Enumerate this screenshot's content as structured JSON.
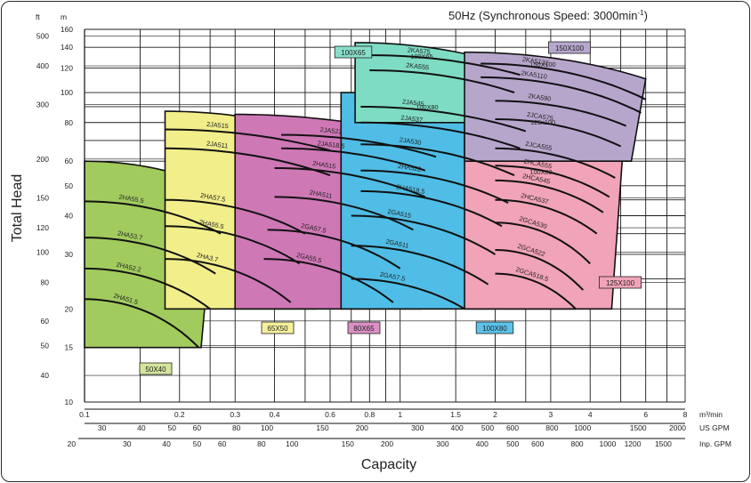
{
  "chart_data": {
    "type": "pump-selection-chart",
    "title": "50Hz (Synchronous Speed: 3000min",
    "title_sup": "-1",
    "title_end": ")",
    "ylabel": "Total Head",
    "xlabel": "Capacity",
    "y_scale": "log",
    "x_scale": "log",
    "ylim_m": [
      10,
      160
    ],
    "xlim_m3min": [
      0.1,
      8
    ],
    "y_units": {
      "left": "ft",
      "right": "m"
    },
    "y_ticks_m": [
      "160",
      "140",
      "120",
      "100",
      "80",
      "60",
      "50",
      "40",
      "30",
      "20",
      "15",
      "10"
    ],
    "y_ticks_ft": [
      "500",
      "400",
      "300",
      "200",
      "150",
      "120",
      "100",
      "80",
      "60",
      "50",
      "40"
    ],
    "x_units": [
      "m³/min",
      "US GPM",
      "Inp. GPM"
    ],
    "x_ticks_m3min": [
      "0.1",
      "0.2",
      "0.3",
      "0.4",
      "0.6",
      "0.8",
      "1",
      "1.5",
      "2",
      "3",
      "4",
      "6",
      "8"
    ],
    "x_ticks_usgpm": [
      "30",
      "40",
      "50",
      "60",
      "80",
      "100",
      "150",
      "200",
      "300",
      "400",
      "500",
      "600",
      "800",
      "1000",
      "1500",
      "2000"
    ],
    "x_ticks_impgpm": [
      "20",
      "30",
      "40",
      "50",
      "60",
      "80",
      "100",
      "150",
      "200",
      "300",
      "400",
      "500",
      "600",
      "800",
      "1000",
      "1200",
      "1500"
    ],
    "series": [
      {
        "name": "50X40",
        "color": "#a2cb5e",
        "label_color": "#d3e59b",
        "x": [
          0.1,
          0.26
        ],
        "y": [
          15,
          60
        ],
        "curves": [
          {
            "label": "2HA55.5",
            "points": [
              [
                0.1,
                44.5
              ],
              [
                0.27,
                35
              ]
            ]
          },
          {
            "label": "2HA53.7",
            "points": [
              [
                0.1,
                34
              ],
              [
                0.26,
                26
              ]
            ]
          },
          {
            "label": "2HA52.2",
            "points": [
              [
                0.1,
                27
              ],
              [
                0.25,
                20
              ]
            ]
          },
          {
            "label": "2HA51.5",
            "points": [
              [
                0.1,
                21.5
              ],
              [
                0.23,
                15
              ]
            ]
          }
        ]
      },
      {
        "name": "65X50",
        "color": "#f2ee8a",
        "label_color": "#f5f09a",
        "x": [
          0.18,
          0.6
        ],
        "y": [
          20,
          87
        ],
        "curves": [
          {
            "label": "2JA515",
            "points": [
              [
                0.18,
                76
              ],
              [
                0.6,
                65
              ]
            ]
          },
          {
            "label": "2JA511",
            "points": [
              [
                0.18,
                66
              ],
              [
                0.6,
                54
              ]
            ]
          },
          {
            "label": "2HA57.5",
            "points": [
              [
                0.18,
                45
              ],
              [
                0.5,
                35
              ]
            ]
          },
          {
            "label": "2HA55.5",
            "points": [
              [
                0.18,
                37
              ],
              [
                0.48,
                28
              ]
            ]
          },
          {
            "label": "2HA3.7",
            "points": [
              [
                0.18,
                29
              ],
              [
                0.45,
                21
              ]
            ]
          }
        ]
      },
      {
        "name": "80X65",
        "color": "#cf78b6",
        "label_color": "#d990c4",
        "x": [
          0.3,
          1.3
        ],
        "y": [
          20,
          85
        ],
        "curves": [
          {
            "label": "2JA522",
            "points": [
              [
                0.42,
                73
              ],
              [
                1.3,
                62
              ]
            ]
          },
          {
            "label": "2JA518.5",
            "points": [
              [
                0.42,
                66
              ],
              [
                1.2,
                56
              ]
            ]
          },
          {
            "label": "2HA515",
            "points": [
              [
                0.4,
                57
              ],
              [
                1.2,
                46
              ]
            ]
          },
          {
            "label": "2HA511",
            "points": [
              [
                0.4,
                46
              ],
              [
                1.1,
                36
              ]
            ]
          },
          {
            "label": "2GA57.5",
            "points": [
              [
                0.38,
                36
              ],
              [
                1.0,
                27
              ]
            ]
          },
          {
            "label": "2GA55.5",
            "points": [
              [
                0.37,
                29
              ],
              [
                0.95,
                21
              ]
            ]
          }
        ]
      },
      {
        "name": "100X80",
        "color": "#4fbde6",
        "label_color": "#5cc3ea",
        "x": [
          0.65,
          4.0
        ],
        "y": [
          20,
          100
        ],
        "curves": [
          {
            "label": "2JA545",
            "points": [
              [
                0.75,
                90
              ],
              [
                2.5,
                75
              ]
            ]
          },
          {
            "label": "2JA537",
            "points": [
              [
                0.75,
                80
              ],
              [
                2.4,
                66
              ]
            ]
          },
          {
            "label": "2JA530",
            "points": [
              [
                0.75,
                68
              ],
              [
                2.3,
                54
              ]
            ]
          },
          {
            "label": "2HA522",
            "points": [
              [
                0.75,
                56
              ],
              [
                2.2,
                44
              ]
            ]
          },
          {
            "label": "2HA518.5",
            "points": [
              [
                0.75,
                48
              ],
              [
                2.1,
                37
              ]
            ]
          },
          {
            "label": "2GA515",
            "points": [
              [
                0.7,
                40
              ],
              [
                2.0,
                30
              ]
            ]
          },
          {
            "label": "2GA511",
            "points": [
              [
                0.7,
                32
              ],
              [
                1.9,
                24
              ]
            ]
          },
          {
            "label": "2GA57.5",
            "points": [
              [
                0.7,
                25
              ],
              [
                1.6,
                20
              ]
            ]
          }
        ]
      },
      {
        "name": "125X100",
        "color": "#f1a3b7",
        "label_color": "#f1a3b7",
        "x": [
          1.6,
          5.2
        ],
        "y": [
          20,
          110
        ],
        "curves": [
          {
            "label": "2KA590",
            "points": [
              [
                2.0,
                94
              ],
              [
                5.2,
                78
              ]
            ]
          },
          {
            "label": "2JCA575",
            "points": [
              [
                2.0,
                82
              ],
              [
                5.0,
                67
              ]
            ]
          },
          {
            "label": "2JCA555",
            "points": [
              [
                2.0,
                66
              ],
              [
                4.8,
                53
              ]
            ]
          },
          {
            "label": "2HCA555",
            "points": [
              [
                2.0,
                58
              ],
              [
                4.6,
                46
              ]
            ]
          },
          {
            "label": "2HCA545",
            "points": [
              [
                2.0,
                52
              ],
              [
                4.4,
                41
              ]
            ]
          },
          {
            "label": "2HCA537",
            "points": [
              [
                2.0,
                45
              ],
              [
                4.2,
                35
              ]
            ]
          },
          {
            "label": "2GCA530",
            "points": [
              [
                2.0,
                38
              ],
              [
                4.0,
                28
              ]
            ]
          },
          {
            "label": "2GCA522",
            "points": [
              [
                2.0,
                31
              ],
              [
                3.8,
                23
              ]
            ]
          },
          {
            "label": "2GCA518.5",
            "points": [
              [
                2.0,
                26
              ],
              [
                3.6,
                20
              ]
            ]
          }
        ]
      },
      {
        "name": "100X65",
        "color": "#7fdcc4",
        "label_color": "#88dec8",
        "x": [
          0.72,
          2.4
        ],
        "y": [
          80,
          145
        ],
        "curves": [
          {
            "label": "2KA575",
            "points": [
              [
                0.8,
                132
              ],
              [
                2.4,
                114
              ]
            ]
          },
          {
            "label": "2KA555",
            "points": [
              [
                0.8,
                118
              ],
              [
                2.3,
                100
              ]
            ]
          }
        ]
      },
      {
        "name": "150X100",
        "color": "#b7a6cc",
        "label_color": "#b6a7cd",
        "x": [
          1.6,
          6.0
        ],
        "y": [
          60,
          135
        ],
        "curves": [
          {
            "label": "2KA5132",
            "points": [
              [
                1.8,
                124
              ],
              [
                6.0,
                95
              ]
            ]
          },
          {
            "label": "2KA5110",
            "points": [
              [
                1.8,
                112
              ],
              [
                5.8,
                86
              ]
            ]
          }
        ]
      }
    ],
    "group_labels": [
      {
        "name": "100X65"
      },
      {
        "name": "150X100"
      },
      {
        "name": "50X40"
      },
      {
        "name": "65X50"
      },
      {
        "name": "80X65"
      },
      {
        "name": "100X80"
      },
      {
        "name": "125X100"
      }
    ],
    "inner_labels": [
      "100X65",
      "100X80",
      "150X100",
      "125x100",
      "100X80"
    ],
    "grid": "on",
    "legend": "none"
  }
}
